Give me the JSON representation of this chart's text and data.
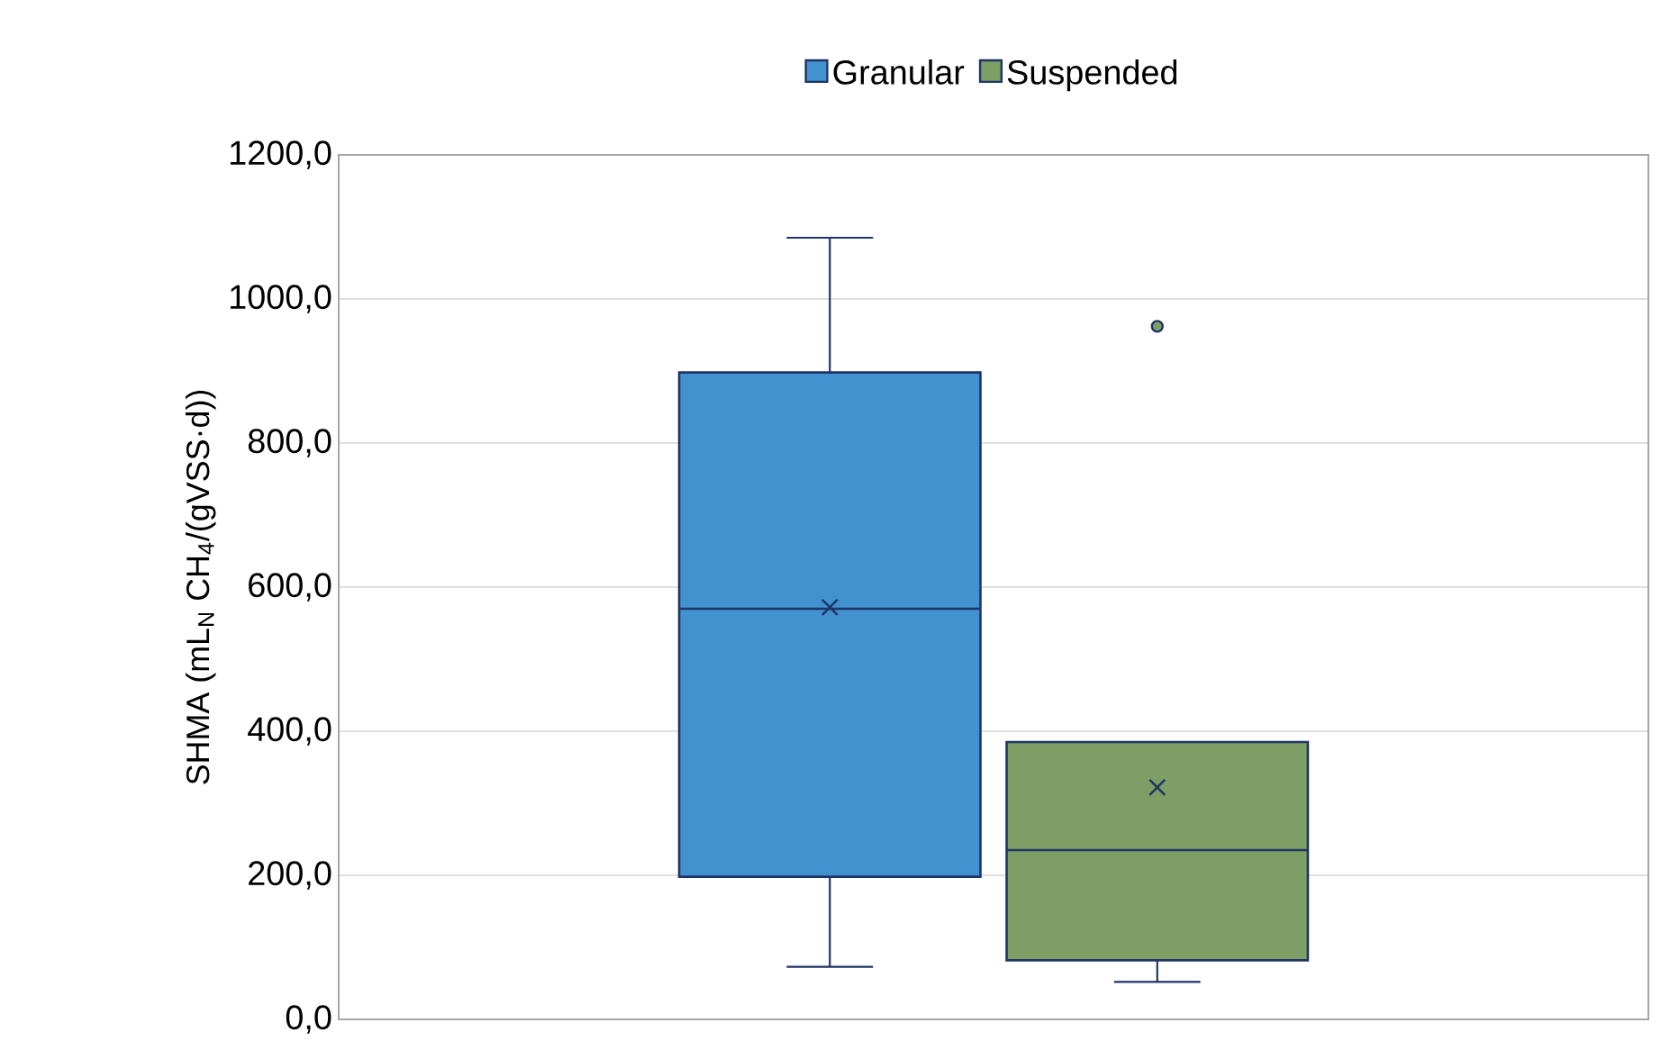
{
  "chart_data": {
    "type": "box",
    "categories": [
      null
    ],
    "ylabel": "SHMA (mL$_{N}$ CH$_{4}$/(gVSS·d))",
    "ylim": [
      0,
      1200
    ],
    "yticks": [
      {
        "value": 0,
        "label": "0,0"
      },
      {
        "value": 200,
        "label": "200,0"
      },
      {
        "value": 400,
        "label": "400,0"
      },
      {
        "value": 600,
        "label": "600,0"
      },
      {
        "value": 800,
        "label": "800,0"
      },
      {
        "value": 1000,
        "label": "1000,0"
      },
      {
        "value": 1200,
        "label": "1200,0"
      }
    ],
    "grid": "y",
    "legend": "top",
    "marker": "cross",
    "series": [
      {
        "name": "Granular",
        "color": "#4292cf",
        "boxes": [
          {
            "low": 73,
            "q1": 198,
            "median": 570,
            "q3": 898,
            "high": 1085,
            "mean": 572
          }
        ]
      },
      {
        "name": "Suspended",
        "color": "#7d9f66",
        "boxes": [
          {
            "low": 52,
            "q1": 82,
            "median": 235,
            "q3": 385,
            "high": 385,
            "mean": 322,
            "outliers": [
              962
            ]
          }
        ]
      }
    ]
  }
}
